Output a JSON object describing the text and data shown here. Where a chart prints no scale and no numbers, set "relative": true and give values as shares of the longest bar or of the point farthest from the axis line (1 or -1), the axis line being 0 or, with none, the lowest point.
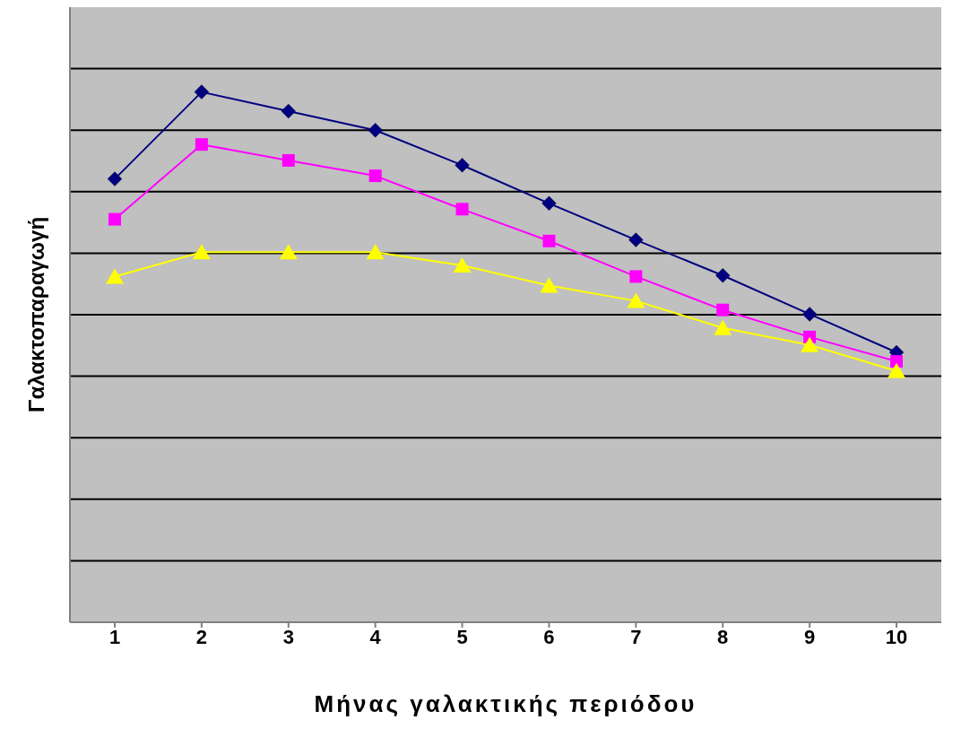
{
  "chart_data": {
    "type": "line",
    "relative": true,
    "xlabel": "Μήνας γαλακτικής περιόδου",
    "ylabel": "Γαλακτοπαραγωγή",
    "categories": [
      "1",
      "2",
      "3",
      "4",
      "5",
      "6",
      "7",
      "8",
      "9",
      "10"
    ],
    "series": [
      {
        "color": "#000080",
        "marker": "diamond",
        "values": [
          0.836,
          1,
          0.964,
          0.928,
          0.862,
          0.79,
          0.721,
          0.654,
          0.581,
          0.509
        ]
      },
      {
        "color": "#ff00ff",
        "marker": "square",
        "values": [
          0.76,
          0.901,
          0.871,
          0.842,
          0.779,
          0.719,
          0.652,
          0.589,
          0.538,
          0.492
        ]
      },
      {
        "color": "#ffff00",
        "marker": "triangle",
        "values": [
          0.652,
          0.698,
          0.698,
          0.698,
          0.673,
          0.635,
          0.606,
          0.555,
          0.523,
          0.474
        ]
      }
    ],
    "grid": "y",
    "legend": false
  }
}
